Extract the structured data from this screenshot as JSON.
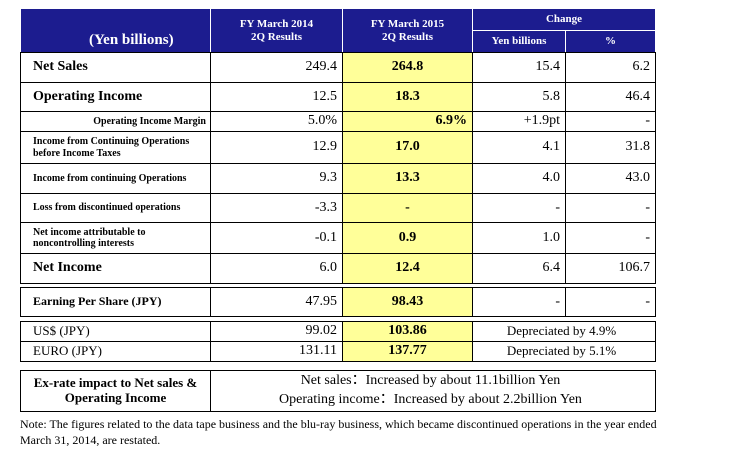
{
  "header": {
    "unit": "(Yen billions)",
    "fy2014": [
      "FY March 2014",
      "2Q Results"
    ],
    "fy2015": [
      "FY March 2015",
      "2Q Results"
    ],
    "change": "Change",
    "change_yen": "Yen billions",
    "change_pct": "%"
  },
  "rows": [
    {
      "label": "Net Sales",
      "fy2014": "249.4",
      "fy2015": "264.8",
      "change": "15.4",
      "pct": "6.2"
    },
    {
      "label": "Operating Income",
      "fy2014": "12.5",
      "fy2015": "18.3",
      "change": "5.8",
      "pct": "46.4"
    },
    {
      "label": "Operating Income Margin",
      "fy2014": "5.0%",
      "fy2015": "6.9%",
      "change": "+1.9pt",
      "pct": "-"
    },
    {
      "label": "Income from Continuing Operations\nbefore Income Taxes",
      "fy2014": "12.9",
      "fy2015": "17.0",
      "change": "4.1",
      "pct": "31.8"
    },
    {
      "label": "Income from continuing Operations",
      "fy2014": "9.3",
      "fy2015": "13.3",
      "change": "4.0",
      "pct": "43.0"
    },
    {
      "label": "Loss from discontinued operations",
      "fy2014": "-3.3",
      "fy2015": "-",
      "change": "-",
      "pct": "-"
    },
    {
      "label": "Net income attributable to\nnoncontrolling interests",
      "fy2014": "-0.1",
      "fy2015": "0.9",
      "change": "1.0",
      "pct": "-"
    },
    {
      "label": "Net Income",
      "fy2014": "6.0",
      "fy2015": "12.4",
      "change": "6.4",
      "pct": "106.7"
    }
  ],
  "eps": {
    "label": "Earning Per Share (JPY)",
    "fy2014": "47.95",
    "fy2015": "98.43",
    "change": "-",
    "pct": "-"
  },
  "fx": [
    {
      "label": "US$ (JPY)",
      "fy2014": "99.02",
      "fy2015": "103.86",
      "change": "Depreciated by 4.9%"
    },
    {
      "label": "EURO (JPY)",
      "fy2014": "131.11",
      "fy2015": "137.77",
      "change": "Depreciated by 5.1%"
    }
  ],
  "exrate": {
    "label": "Ex-rate impact to Net sales &\nOperating Income",
    "lines": [
      "Net sales：Increased by about 11.1billion Yen",
      "Operating income：Increased by about 2.2billion Yen"
    ]
  },
  "note": "Note: The figures related to the data tape business and the blu-ray business, which became discontinued operations  in the year ended March 31, 2014, are restated."
}
